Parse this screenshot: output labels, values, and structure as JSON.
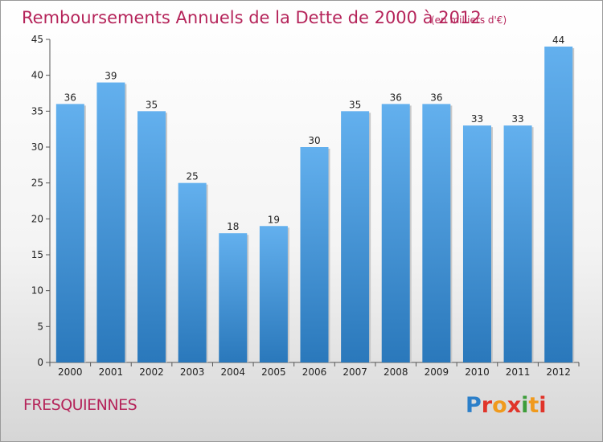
{
  "chart_data": {
    "type": "bar",
    "title": "Remboursements Annuels de la Dette de 2000 à 2012",
    "unit": "(en milliers d'€)",
    "categories": [
      "2000",
      "2001",
      "2002",
      "2003",
      "2004",
      "2005",
      "2006",
      "2007",
      "2008",
      "2009",
      "2010",
      "2011",
      "2012"
    ],
    "values": [
      36,
      39,
      35,
      25,
      18,
      19,
      30,
      35,
      36,
      36,
      33,
      33,
      44
    ],
    "ylim": [
      0,
      45
    ],
    "yticks": [
      0,
      5,
      10,
      15,
      20,
      25,
      30,
      35,
      40,
      45
    ],
    "grid": false,
    "bar_color_top": "#63b0ee",
    "bar_color_bottom": "#2a78bb"
  },
  "footer": {
    "town": "FRESQUIENNES",
    "logo_text": "Proxiti",
    "logo_colors": [
      "#2c7fc9",
      "#e0342a",
      "#f09a1d",
      "#e0342a",
      "#3d9d3a",
      "#f09a1d",
      "#e0342a"
    ]
  }
}
